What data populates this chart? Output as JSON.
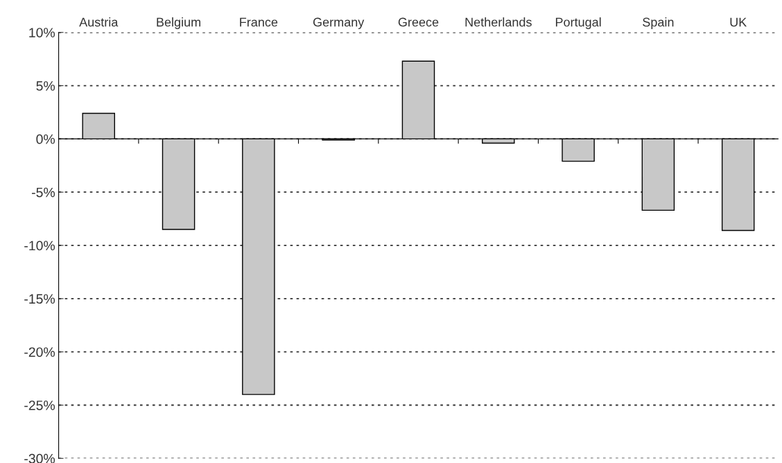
{
  "chart_data": {
    "type": "bar",
    "categories": [
      "Austria",
      "Belgium",
      "France",
      "Germany",
      "Greece",
      "Netherlands",
      "Portugal",
      "Spain",
      "UK"
    ],
    "values": [
      2.4,
      -8.5,
      -24,
      -0.1,
      7.3,
      -0.4,
      -2.1,
      -6.7,
      -8.6
    ],
    "color": "#c8c8c8",
    "ylim": [
      -30,
      10
    ],
    "yticks": [
      {
        "value": 10,
        "label": "10%"
      },
      {
        "value": 5,
        "label": "5%"
      },
      {
        "value": 0,
        "label": "0%"
      },
      {
        "value": -5,
        "label": "-5%"
      },
      {
        "value": -10,
        "label": "-10%"
      },
      {
        "value": -15,
        "label": "-15%"
      },
      {
        "value": -20,
        "label": "-20%"
      },
      {
        "value": -25,
        "label": "-25%"
      },
      {
        "value": -30,
        "label": "-30%"
      }
    ],
    "grid": "y"
  }
}
